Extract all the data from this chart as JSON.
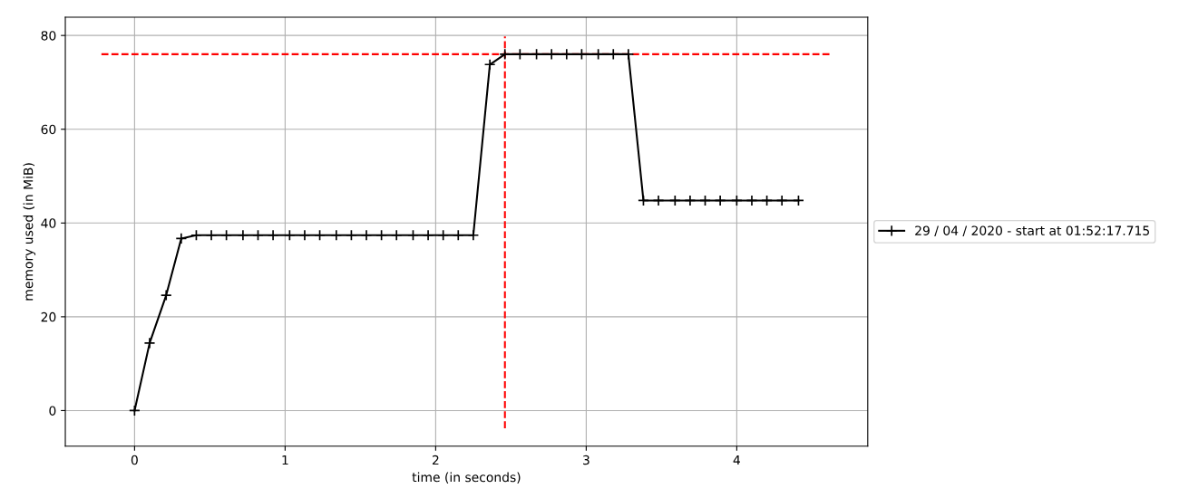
{
  "chart_data": {
    "type": "line",
    "xlabel": "time (in seconds)",
    "ylabel": "memory used (in MiB)",
    "series": [
      {
        "name": "29 / 04 / 2020 - start at 01:52:17.715",
        "color": "#000000",
        "marker": "cross",
        "line_style": "solid",
        "x": [
          0,
          0.1,
          0.21,
          0.31,
          0.41,
          0.51,
          0.61,
          0.72,
          0.82,
          0.92,
          1.03,
          1.13,
          1.23,
          1.34,
          1.44,
          1.54,
          1.64,
          1.74,
          1.85,
          1.95,
          2.05,
          2.15,
          2.25,
          2.36,
          2.46,
          2.56,
          2.67,
          2.77,
          2.87,
          2.97,
          3.08,
          3.18,
          3.28,
          3.38,
          3.48,
          3.59,
          3.69,
          3.79,
          3.89,
          4.0,
          4.1,
          4.2,
          4.3,
          4.41
        ],
        "values": [
          0,
          14.4,
          24.6,
          36.7,
          37.4,
          37.4,
          37.4,
          37.4,
          37.4,
          37.4,
          37.4,
          37.4,
          37.4,
          37.4,
          37.4,
          37.4,
          37.4,
          37.4,
          37.4,
          37.4,
          37.4,
          37.4,
          37.4,
          73.8,
          76.0,
          76.0,
          76.0,
          76.0,
          76.0,
          76.0,
          76.0,
          76.0,
          76.0,
          44.8,
          44.8,
          44.8,
          44.8,
          44.8,
          44.8,
          44.8,
          44.8,
          44.8,
          44.8,
          44.8
        ]
      }
    ],
    "ref_lines": [
      {
        "axis": "y",
        "value": 76.0,
        "color": "#ff0000",
        "line_style": "dashed"
      },
      {
        "axis": "x",
        "value": 2.46,
        "color": "#ff0000",
        "line_style": "dashed"
      }
    ],
    "xlim": [
      -0.46,
      4.87
    ],
    "xticks": [
      0,
      1,
      2,
      3,
      4
    ],
    "ylim": [
      -7.6,
      83.9
    ],
    "yticks": [
      0,
      20,
      40,
      60,
      80
    ],
    "grid": true,
    "legend": "right"
  }
}
